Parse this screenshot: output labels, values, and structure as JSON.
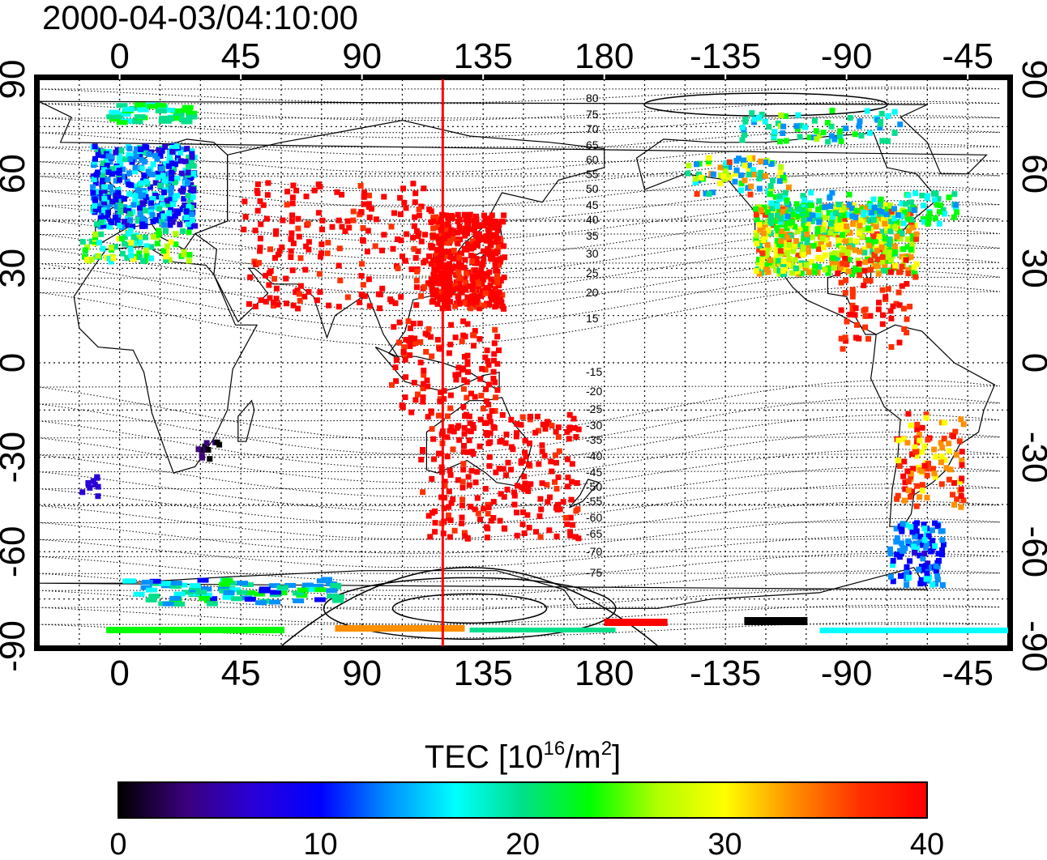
{
  "title": "2000-04-03/04:10:00",
  "map": {
    "lon_ticks": [
      "0",
      "45",
      "90",
      "135",
      "180",
      "-135",
      "-90",
      "-45"
    ],
    "lat_ticks": [
      "90",
      "60",
      "30",
      "0",
      "-30",
      "-60",
      "-90"
    ],
    "meridian_marker_lon": 120,
    "meridian_marker_color": "#ff0000",
    "mag_lat_labels": [
      "80",
      "75",
      "70",
      "65",
      "60",
      "55",
      "50",
      "45",
      "40",
      "35",
      "30",
      "25",
      "20",
      "15",
      "-15",
      "-20",
      "-25",
      "-30",
      "-35",
      "-40",
      "-45",
      "-50",
      "-55",
      "-60",
      "-65",
      "-70",
      "-75"
    ],
    "grid": true
  },
  "colorbar": {
    "label_main": "TEC  [10",
    "label_exp": "16",
    "label_unit": "/m",
    "label_exp2": "2",
    "label_close": "]",
    "ticks": [
      "0",
      "10",
      "20",
      "30",
      "40"
    ],
    "range": [
      0,
      40
    ],
    "colors": [
      "#000000",
      "#3a007a",
      "#2a00d8",
      "#0000ff",
      "#0090ff",
      "#00ffff",
      "#00e08a",
      "#00ff00",
      "#b0ff00",
      "#ffff00",
      "#ff9000",
      "#ff3000",
      "#ff0000"
    ]
  }
}
